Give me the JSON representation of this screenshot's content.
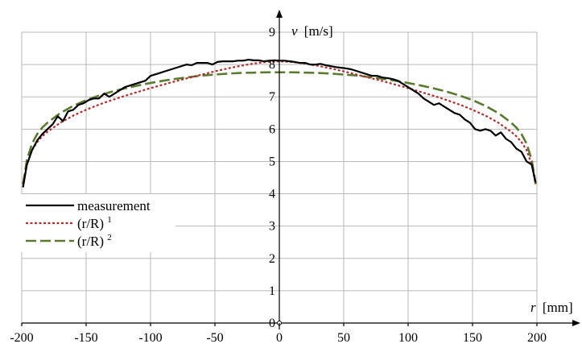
{
  "chart_data": {
    "type": "line",
    "xlabel_var": "r",
    "xlabel_unit": "[mm]",
    "ylabel_var": "v",
    "ylabel_unit": "[m/s]",
    "xlim": [
      -200,
      200
    ],
    "ylim": [
      0,
      9
    ],
    "xticks": [
      -200,
      -150,
      -100,
      -50,
      0,
      50,
      100,
      150,
      200
    ],
    "yticks": [
      0,
      1,
      2,
      3,
      4,
      5,
      6,
      7,
      8,
      9
    ],
    "grid": true,
    "legend_position": "left-middle",
    "legend": [
      {
        "text": "measurement"
      },
      {
        "base": "(r/R)",
        "sup": "1"
      },
      {
        "base": "(r/R)",
        "sup": "2"
      }
    ],
    "series": [
      {
        "name": "measurement",
        "color": "#000000",
        "style": "solid",
        "x": [
          -199,
          -196,
          -192,
          -188,
          -184,
          -180,
          -176,
          -172,
          -168,
          -164,
          -160,
          -156,
          -152,
          -148,
          -144,
          -140,
          -136,
          -132,
          -128,
          -124,
          -120,
          -116,
          -112,
          -108,
          -104,
          -100,
          -96,
          -92,
          -88,
          -84,
          -80,
          -76,
          -72,
          -68,
          -64,
          -60,
          -56,
          -52,
          -48,
          -44,
          -40,
          -36,
          -32,
          -28,
          -24,
          -20,
          -16,
          -12,
          -8,
          -4,
          0,
          4,
          8,
          12,
          16,
          20,
          24,
          28,
          32,
          36,
          40,
          44,
          48,
          52,
          56,
          60,
          64,
          68,
          72,
          76,
          80,
          84,
          88,
          92,
          96,
          100,
          104,
          108,
          112,
          116,
          120,
          124,
          128,
          132,
          136,
          140,
          144,
          148,
          152,
          156,
          160,
          164,
          168,
          172,
          176,
          180,
          184,
          188,
          192,
          196,
          199
        ],
        "y": [
          4.2,
          4.9,
          5.35,
          5.65,
          5.85,
          6.0,
          6.15,
          6.4,
          6.25,
          6.55,
          6.6,
          6.75,
          6.8,
          6.9,
          6.95,
          6.95,
          7.1,
          7.0,
          7.1,
          7.2,
          7.3,
          7.35,
          7.4,
          7.45,
          7.5,
          7.65,
          7.7,
          7.75,
          7.8,
          7.85,
          7.9,
          7.95,
          8.0,
          7.98,
          8.05,
          8.05,
          8.05,
          8.0,
          8.08,
          8.1,
          8.1,
          8.1,
          8.12,
          8.12,
          8.15,
          8.13,
          8.13,
          8.1,
          8.12,
          8.13,
          8.12,
          8.12,
          8.1,
          8.08,
          8.05,
          8.05,
          8.0,
          8.0,
          8.02,
          7.98,
          7.95,
          7.92,
          7.9,
          7.88,
          7.85,
          7.8,
          7.75,
          7.7,
          7.65,
          7.65,
          7.6,
          7.58,
          7.55,
          7.5,
          7.4,
          7.3,
          7.2,
          7.1,
          6.95,
          6.85,
          6.75,
          6.8,
          6.7,
          6.6,
          6.5,
          6.45,
          6.3,
          6.2,
          6.0,
          5.95,
          6.0,
          5.95,
          5.8,
          5.9,
          5.7,
          5.6,
          5.4,
          5.3,
          5.0,
          4.9,
          4.35
        ]
      },
      {
        "name": "(r/R)^1",
        "color": "#b03030",
        "style": "dotted",
        "x": [
          -199,
          -196,
          -192,
          -188,
          -184,
          -180,
          -170,
          -160,
          -150,
          -140,
          -130,
          -120,
          -110,
          -100,
          -90,
          -80,
          -70,
          -60,
          -50,
          -40,
          -30,
          -20,
          -10,
          0,
          10,
          20,
          30,
          40,
          50,
          60,
          70,
          80,
          90,
          100,
          110,
          120,
          130,
          140,
          150,
          160,
          170,
          180,
          184,
          188,
          192,
          196,
          199
        ],
        "y": [
          4.3,
          4.9,
          5.35,
          5.6,
          5.78,
          5.92,
          6.2,
          6.42,
          6.6,
          6.76,
          6.9,
          7.03,
          7.15,
          7.27,
          7.38,
          7.49,
          7.59,
          7.69,
          7.79,
          7.88,
          7.96,
          8.03,
          8.08,
          8.1,
          8.08,
          8.03,
          7.96,
          7.88,
          7.79,
          7.69,
          7.59,
          7.49,
          7.38,
          7.27,
          7.15,
          7.03,
          6.9,
          6.76,
          6.6,
          6.42,
          6.2,
          5.92,
          5.78,
          5.6,
          5.35,
          4.9,
          4.3
        ]
      },
      {
        "name": "(r/R)^2",
        "color": "#5a7a30",
        "style": "dashed",
        "x": [
          -199,
          -196,
          -192,
          -188,
          -184,
          -180,
          -170,
          -160,
          -150,
          -140,
          -130,
          -120,
          -110,
          -100,
          -90,
          -80,
          -70,
          -60,
          -50,
          -40,
          -30,
          -20,
          -10,
          0,
          10,
          20,
          30,
          40,
          50,
          60,
          70,
          80,
          90,
          100,
          110,
          120,
          130,
          140,
          150,
          160,
          170,
          180,
          184,
          188,
          192,
          196,
          199
        ],
        "y": [
          4.3,
          5.05,
          5.55,
          5.85,
          6.05,
          6.2,
          6.5,
          6.72,
          6.9,
          7.04,
          7.16,
          7.26,
          7.35,
          7.43,
          7.5,
          7.56,
          7.61,
          7.66,
          7.69,
          7.72,
          7.74,
          7.75,
          7.76,
          7.76,
          7.76,
          7.75,
          7.74,
          7.72,
          7.69,
          7.66,
          7.61,
          7.56,
          7.5,
          7.43,
          7.35,
          7.26,
          7.16,
          7.04,
          6.9,
          6.72,
          6.5,
          6.2,
          6.05,
          5.85,
          5.55,
          5.05,
          4.3
        ]
      }
    ]
  }
}
